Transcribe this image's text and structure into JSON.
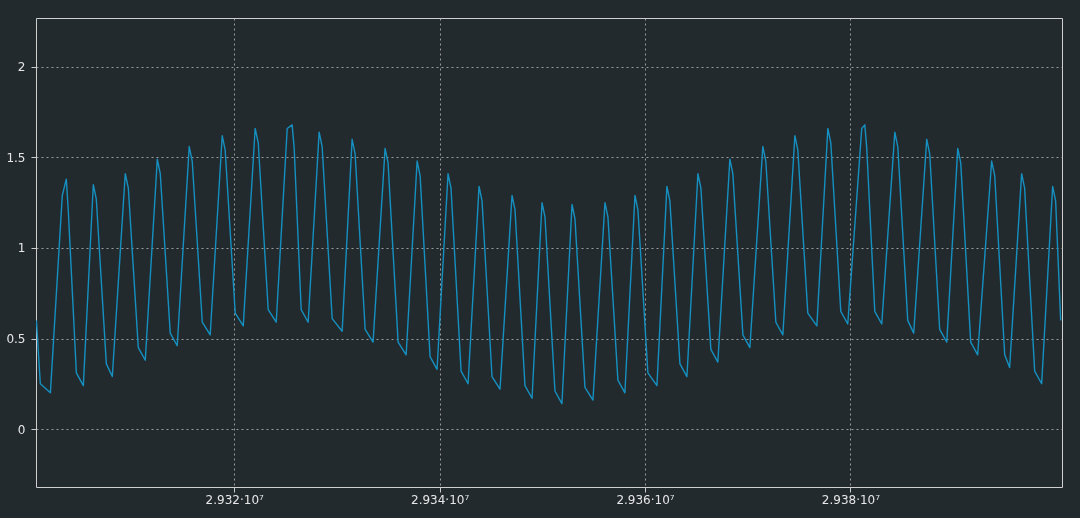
{
  "chart_data": {
    "type": "line",
    "x": [
      29300740,
      29301120,
      29302100,
      29303260,
      29303650,
      29303850,
      29304630,
      29305310,
      29306280,
      29306570,
      29307550,
      29308130,
      29309390,
      29309690,
      29310660,
      29311340,
      29312510,
      29312800,
      29313770,
      29314450,
      29315620,
      29315910,
      29316890,
      29317660,
      29318830,
      29319120,
      29320100,
      29320880,
      29322040,
      29322340,
      29323310,
      29324090,
      29325160,
      29325640,
      29325840,
      29326520,
      29327200,
      29328270,
      29328560,
      29329540,
      29330510,
      29331480,
      29331770,
      29332750,
      29333520,
      29334690,
      29334980,
      29335960,
      29336740,
      29337810,
      29338100,
      29339070,
      29339750,
      29340820,
      29341110,
      29342090,
      29342770,
      29343840,
      29344130,
      29345100,
      29345880,
      29347050,
      29347340,
      29348310,
      29349000,
      29349970,
      29350260,
      29351230,
      29351910,
      29352890,
      29353180,
      29354150,
      29354930,
      29356100,
      29356390,
      29357360,
      29358040,
      29359020,
      29359310,
      29360280,
      29361160,
      29362130,
      29362420,
      29363400,
      29364080,
      29365150,
      29365440,
      29366410,
      29367090,
      29368260,
      29368550,
      29369530,
      29370210,
      29371470,
      29371760,
      29372740,
      29373420,
      29374590,
      29374880,
      29375850,
      29376730,
      29377800,
      29378090,
      29379060,
      29379740,
      29381100,
      29381400,
      29381590,
      29382370,
      29383050,
      29384320,
      29384610,
      29385580,
      29386160,
      29387430,
      29387720,
      29388690,
      29389380,
      29390450,
      29390740,
      29391710,
      29392390,
      29393750,
      29394050,
      29395020,
      29395500,
      29396670,
      29396960,
      29397940,
      29398620,
      29399690,
      29399980,
      29400470
    ],
    "series": [
      {
        "color": "#1590c0",
        "values": [
          0.6,
          0.25,
          0.2,
          1.29,
          1.38,
          1.2,
          0.31,
          0.24,
          1.35,
          1.27,
          0.36,
          0.29,
          1.41,
          1.33,
          0.45,
          0.38,
          1.49,
          1.41,
          0.53,
          0.46,
          1.56,
          1.48,
          0.59,
          0.52,
          1.62,
          1.54,
          0.64,
          0.57,
          1.66,
          1.58,
          0.66,
          0.59,
          1.66,
          1.68,
          1.55,
          0.66,
          0.59,
          1.64,
          1.56,
          0.61,
          0.54,
          1.6,
          1.52,
          0.55,
          0.48,
          1.55,
          1.47,
          0.48,
          0.41,
          1.48,
          1.4,
          0.4,
          0.33,
          1.41,
          1.33,
          0.32,
          0.25,
          1.34,
          1.26,
          0.29,
          0.22,
          1.29,
          1.21,
          0.24,
          0.17,
          1.25,
          1.17,
          0.21,
          0.14,
          1.24,
          1.16,
          0.23,
          0.16,
          1.25,
          1.17,
          0.27,
          0.2,
          1.29,
          1.21,
          0.31,
          0.24,
          1.34,
          1.26,
          0.36,
          0.29,
          1.41,
          1.33,
          0.44,
          0.37,
          1.49,
          1.41,
          0.52,
          0.45,
          1.56,
          1.48,
          0.59,
          0.52,
          1.62,
          1.54,
          0.64,
          0.57,
          1.66,
          1.58,
          0.65,
          0.58,
          1.66,
          1.68,
          1.55,
          0.65,
          0.58,
          1.64,
          1.56,
          0.6,
          0.53,
          1.6,
          1.52,
          0.55,
          0.48,
          1.55,
          1.47,
          0.48,
          0.41,
          1.48,
          1.4,
          0.41,
          0.34,
          1.41,
          1.33,
          0.32,
          0.25,
          1.34,
          1.26,
          0.6
        ]
      }
    ],
    "xlim": [
      29300700,
      29400600
    ],
    "xticks": [
      {
        "value": 29320000,
        "label": "2.932·10⁷"
      },
      {
        "value": 29340000,
        "label": "2.934·10⁷"
      },
      {
        "value": 29360000,
        "label": "2.936·10⁷"
      },
      {
        "value": 29380000,
        "label": "2.938·10⁷"
      }
    ],
    "ylim": [
      -0.32,
      2.27
    ],
    "yticks": [
      0,
      0.5,
      1,
      1.5,
      2
    ],
    "grid": true,
    "marker": "none",
    "line_style": "solid"
  }
}
